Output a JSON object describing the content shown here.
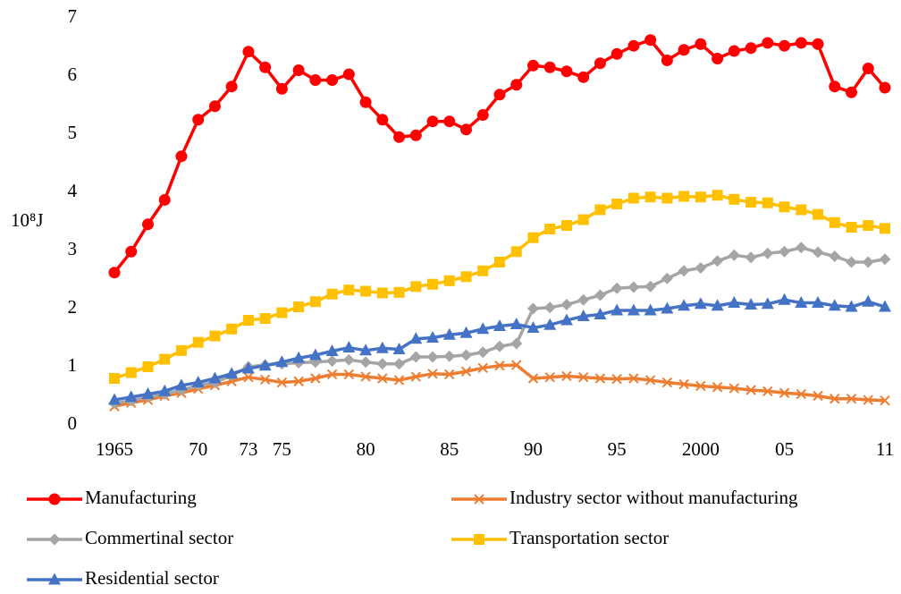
{
  "chart_data": {
    "type": "line",
    "y_label": "10⁸J",
    "x": [
      1965,
      1966,
      1967,
      1968,
      1969,
      1970,
      1971,
      1972,
      1973,
      1974,
      1975,
      1976,
      1977,
      1978,
      1979,
      1980,
      1981,
      1982,
      1983,
      1984,
      1985,
      1986,
      1987,
      1988,
      1989,
      1990,
      1991,
      1992,
      1993,
      1994,
      1995,
      1996,
      1997,
      1998,
      1999,
      2000,
      2001,
      2002,
      2003,
      2004,
      2005,
      2006,
      2007,
      2008,
      2009,
      2010,
      2011
    ],
    "xlim": [
      1965,
      2011
    ],
    "xticks": [
      1965,
      {
        "value": 1970,
        "label": "70"
      },
      {
        "value": 1973,
        "label": "73"
      },
      {
        "value": 1975,
        "label": "75"
      },
      {
        "value": 1980,
        "label": "80"
      },
      {
        "value": 1985,
        "label": "85"
      },
      {
        "value": 1990,
        "label": "90"
      },
      {
        "value": 1995,
        "label": "95"
      },
      2000,
      {
        "value": 2005,
        "label": "05"
      },
      {
        "value": 2011,
        "label": "11"
      }
    ],
    "ylim": [
      0,
      7
    ],
    "yticks": [
      0,
      1,
      2,
      3,
      4,
      5,
      6,
      7
    ],
    "grid": false,
    "legend": "bottom",
    "series": [
      {
        "name": "Manufacturing",
        "color": "#ff0000",
        "marker": "circle",
        "values": [
          2.62,
          2.98,
          3.45,
          3.87,
          4.62,
          5.25,
          5.48,
          5.82,
          6.42,
          6.15,
          5.78,
          6.1,
          5.93,
          5.93,
          6.03,
          5.55,
          5.25,
          4.95,
          4.98,
          5.22,
          5.22,
          5.08,
          5.33,
          5.68,
          5.85,
          6.18,
          6.15,
          6.08,
          5.98,
          6.22,
          6.38,
          6.52,
          6.62,
          6.27,
          6.45,
          6.55,
          6.3,
          6.43,
          6.48,
          6.57,
          6.52,
          6.57,
          6.55,
          5.82,
          5.72,
          6.13,
          5.8
        ]
      },
      {
        "name": "Industry sector without manufacturing",
        "color": "#ed7d31",
        "marker": "x",
        "values": [
          0.32,
          0.38,
          0.43,
          0.5,
          0.55,
          0.62,
          0.68,
          0.75,
          0.82,
          0.78,
          0.73,
          0.75,
          0.8,
          0.87,
          0.87,
          0.83,
          0.8,
          0.77,
          0.83,
          0.88,
          0.87,
          0.92,
          0.98,
          1.02,
          1.03,
          0.8,
          0.82,
          0.84,
          0.82,
          0.8,
          0.79,
          0.8,
          0.77,
          0.73,
          0.7,
          0.67,
          0.65,
          0.63,
          0.6,
          0.58,
          0.55,
          0.53,
          0.5,
          0.45,
          0.45,
          0.43,
          0.42
        ]
      },
      {
        "name": "Commertinal sector",
        "color": "#a5a5a5",
        "marker": "diamond",
        "values": [
          0.37,
          0.42,
          0.48,
          0.53,
          0.6,
          0.68,
          0.73,
          0.85,
          1.0,
          1.03,
          1.05,
          1.07,
          1.08,
          1.1,
          1.12,
          1.08,
          1.05,
          1.05,
          1.17,
          1.17,
          1.18,
          1.2,
          1.25,
          1.35,
          1.4,
          2.0,
          2.02,
          2.07,
          2.15,
          2.23,
          2.35,
          2.37,
          2.38,
          2.52,
          2.65,
          2.7,
          2.82,
          2.92,
          2.88,
          2.95,
          2.98,
          3.05,
          2.97,
          2.9,
          2.8,
          2.8,
          2.85
        ]
      },
      {
        "name": "Transportation sector",
        "color": "#ffc000",
        "marker": "square",
        "values": [
          0.8,
          0.9,
          1.0,
          1.13,
          1.28,
          1.42,
          1.53,
          1.65,
          1.8,
          1.83,
          1.93,
          2.03,
          2.12,
          2.25,
          2.32,
          2.3,
          2.27,
          2.28,
          2.38,
          2.42,
          2.48,
          2.55,
          2.65,
          2.8,
          2.98,
          3.22,
          3.37,
          3.43,
          3.53,
          3.7,
          3.8,
          3.9,
          3.92,
          3.9,
          3.93,
          3.92,
          3.95,
          3.88,
          3.83,
          3.82,
          3.75,
          3.7,
          3.62,
          3.48,
          3.4,
          3.43,
          3.38
        ]
      },
      {
        "name": "Residential sector",
        "color": "#4472c4",
        "marker": "triangle",
        "values": [
          0.43,
          0.48,
          0.53,
          0.58,
          0.68,
          0.73,
          0.8,
          0.88,
          0.97,
          1.02,
          1.08,
          1.15,
          1.2,
          1.27,
          1.33,
          1.28,
          1.32,
          1.3,
          1.48,
          1.5,
          1.55,
          1.58,
          1.65,
          1.7,
          1.73,
          1.67,
          1.72,
          1.8,
          1.87,
          1.9,
          1.97,
          1.97,
          1.97,
          2.0,
          2.05,
          2.08,
          2.05,
          2.1,
          2.07,
          2.08,
          2.15,
          2.1,
          2.1,
          2.05,
          2.03,
          2.12,
          2.03
        ]
      }
    ]
  }
}
